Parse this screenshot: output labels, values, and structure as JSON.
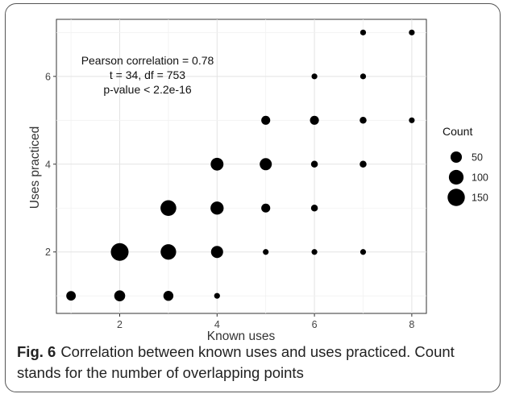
{
  "chart_data": {
    "type": "scatter",
    "xlabel": "Known uses",
    "ylabel": "Uses practiced",
    "xlim": [
      0.7,
      8.3
    ],
    "ylim": [
      0.6,
      7.3
    ],
    "xticks": [
      2,
      4,
      6,
      8
    ],
    "yticks": [
      2,
      4,
      6
    ],
    "grid": true,
    "annotation": [
      "Pearson correlation = 0.78",
      "t = 34, df = 753",
      "p-value < 2.2e-16"
    ],
    "legend": {
      "title": "Count",
      "placement": "right",
      "entries": [
        {
          "label": "50",
          "value": 50
        },
        {
          "label": "100",
          "value": 100
        },
        {
          "label": "150",
          "value": 150
        }
      ]
    },
    "points": [
      {
        "x": 1,
        "y": 1,
        "count": 30
      },
      {
        "x": 2,
        "y": 1,
        "count": 45
      },
      {
        "x": 3,
        "y": 1,
        "count": 35
      },
      {
        "x": 4,
        "y": 1,
        "count": 5
      },
      {
        "x": 2,
        "y": 2,
        "count": 160
      },
      {
        "x": 3,
        "y": 2,
        "count": 115
      },
      {
        "x": 4,
        "y": 2,
        "count": 60
      },
      {
        "x": 5,
        "y": 2,
        "count": 5
      },
      {
        "x": 6,
        "y": 2,
        "count": 5
      },
      {
        "x": 7,
        "y": 2,
        "count": 5
      },
      {
        "x": 3,
        "y": 3,
        "count": 120
      },
      {
        "x": 4,
        "y": 3,
        "count": 75
      },
      {
        "x": 5,
        "y": 3,
        "count": 25
      },
      {
        "x": 6,
        "y": 3,
        "count": 10
      },
      {
        "x": 4,
        "y": 4,
        "count": 70
      },
      {
        "x": 5,
        "y": 4,
        "count": 60
      },
      {
        "x": 6,
        "y": 4,
        "count": 10
      },
      {
        "x": 7,
        "y": 4,
        "count": 10
      },
      {
        "x": 5,
        "y": 5,
        "count": 25
      },
      {
        "x": 6,
        "y": 5,
        "count": 25
      },
      {
        "x": 7,
        "y": 5,
        "count": 10
      },
      {
        "x": 8,
        "y": 5,
        "count": 5
      },
      {
        "x": 6,
        "y": 6,
        "count": 5
      },
      {
        "x": 7,
        "y": 6,
        "count": 5
      },
      {
        "x": 7,
        "y": 7,
        "count": 5
      },
      {
        "x": 8,
        "y": 7,
        "count": 5
      }
    ]
  },
  "caption": {
    "label": "Fig. 6",
    "text": "Correlation between known uses and uses practiced. Count stands for the number of overlapping points"
  }
}
